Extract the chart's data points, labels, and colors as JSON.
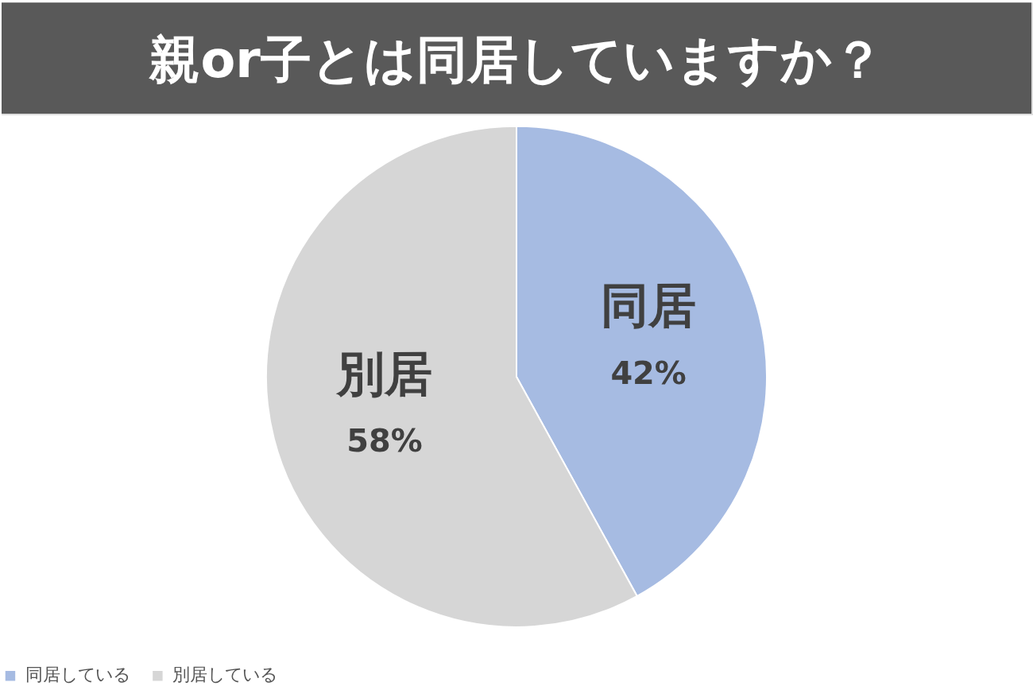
{
  "chart_data": {
    "type": "pie",
    "title": "親or子とは同居していますか？",
    "categories": [
      "同居している",
      "別居している"
    ],
    "values": [
      42,
      58
    ],
    "colors": [
      "#a6bbe2",
      "#d6d6d6"
    ],
    "value_labels": [
      "42%",
      "58%"
    ],
    "annotations": [
      {
        "text": "同居",
        "x": "同居している"
      },
      {
        "text": "別居",
        "x": "別居している"
      }
    ],
    "legend": "bottom"
  }
}
